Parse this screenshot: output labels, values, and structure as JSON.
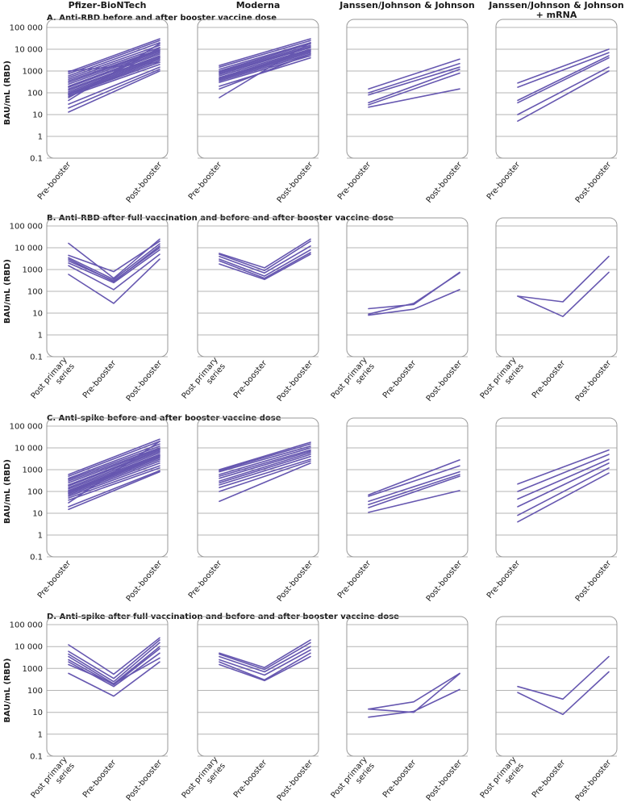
{
  "columns": [
    {
      "label_lines": [
        "Pfizer-BioNTech"
      ]
    },
    {
      "label_lines": [
        "Moderna"
      ]
    },
    {
      "label_lines": [
        "Janssen/Johnson & Johnson"
      ]
    },
    {
      "label_lines": [
        "Janssen/Johnson & Johnson",
        "+ mRNA"
      ]
    }
  ],
  "y_axis_label": "BAU/mL (RBD)",
  "y_tick_labels": [
    "100 000",
    "10 000",
    "1000",
    "100",
    "10",
    "1",
    "0.1"
  ],
  "colors": {
    "series": "#6657b0",
    "grid": "#b4b4b4",
    "frame": "#9a9a9a"
  },
  "chart_data": [
    {
      "type": "line",
      "row": "A",
      "title": "A. Anti-RBD before and after booster vaccine dose",
      "ylabel": "BAU/mL (RBD)",
      "yscale": "log",
      "ylim": [
        0.1,
        100000
      ],
      "categories": [
        "Pre-booster",
        "Post-booster"
      ],
      "panels": [
        {
          "name": "Pfizer-BioNTech",
          "series": [
            [
              900,
              30000
            ],
            [
              750,
              25000
            ],
            [
              600,
              20000
            ],
            [
              500,
              15000
            ],
            [
              420,
              12000
            ],
            [
              350,
              10000
            ],
            [
              300,
              9000
            ],
            [
              250,
              8000
            ],
            [
              200,
              7000
            ],
            [
              180,
              6000
            ],
            [
              150,
              5000
            ],
            [
              130,
              4500
            ],
            [
              110,
              4000
            ],
            [
              95,
              3500
            ],
            [
              85,
              3000
            ],
            [
              80,
              2500
            ],
            [
              70,
              2000
            ],
            [
              60,
              12000
            ],
            [
              45,
              18000
            ],
            [
              30,
              1500
            ],
            [
              20,
              1200
            ],
            [
              13,
              1000
            ],
            [
              1000,
              2500
            ]
          ]
        },
        {
          "name": "Moderna",
          "series": [
            [
              1800,
              30000
            ],
            [
              1500,
              25000
            ],
            [
              1200,
              20000
            ],
            [
              1000,
              18000
            ],
            [
              900,
              15000
            ],
            [
              800,
              13000
            ],
            [
              700,
              12000
            ],
            [
              600,
              10000
            ],
            [
              500,
              9000
            ],
            [
              450,
              8000
            ],
            [
              400,
              7000
            ],
            [
              350,
              6000
            ],
            [
              300,
              5000
            ],
            [
              200,
              4000
            ],
            [
              150,
              6000
            ],
            [
              60,
              20000
            ]
          ]
        },
        {
          "name": "Janssen/Johnson & Johnson",
          "series": [
            [
              150,
              3500
            ],
            [
              100,
              2200
            ],
            [
              80,
              1500
            ],
            [
              35,
              1200
            ],
            [
              28,
              800
            ],
            [
              22,
              150
            ]
          ]
        },
        {
          "name": "Janssen/Johnson & Johnson + mRNA",
          "series": [
            [
              280,
              10000
            ],
            [
              180,
              7000
            ],
            [
              45,
              5000
            ],
            [
              35,
              4000
            ],
            [
              10,
              1500
            ],
            [
              5,
              1000
            ]
          ]
        }
      ]
    },
    {
      "type": "line",
      "row": "B",
      "title": "B. Anti-RBD after full vaccination and before and after booster vaccine dose",
      "ylabel": "BAU/mL (RBD)",
      "yscale": "log",
      "ylim": [
        0.1,
        100000
      ],
      "categories": [
        "Post primary series",
        "Pre-booster",
        "Post-booster"
      ],
      "panels": [
        {
          "name": "Pfizer-BioNTech",
          "series": [
            [
              16000,
              400,
              25000
            ],
            [
              4500,
              800,
              20000
            ],
            [
              3500,
              350,
              15000
            ],
            [
              3000,
              280,
              12000
            ],
            [
              2500,
              300,
              10000
            ],
            [
              2000,
              250,
              8000
            ],
            [
              1500,
              120,
              5000
            ],
            [
              600,
              28,
              3000
            ]
          ]
        },
        {
          "name": "Moderna",
          "series": [
            [
              5500,
              1200,
              25000
            ],
            [
              5000,
              900,
              20000
            ],
            [
              4000,
              700,
              12000
            ],
            [
              3000,
              500,
              8000
            ],
            [
              2500,
              400,
              6000
            ],
            [
              1800,
              350,
              5000
            ]
          ]
        },
        {
          "name": "Janssen/Johnson & Johnson",
          "series": [
            [
              16,
              25,
              750
            ],
            [
              9,
              28,
              700
            ],
            [
              8,
              15,
              120
            ]
          ]
        },
        {
          "name": "Janssen/Johnson & Johnson + mRNA",
          "series": [
            [
              60,
              33,
              4000
            ],
            [
              60,
              7,
              750
            ]
          ]
        }
      ]
    },
    {
      "type": "line",
      "row": "C",
      "title": "C. Anti-spike before and after booster vaccine dose",
      "ylabel": "BAU/mL (RBD)",
      "yscale": "log",
      "ylim": [
        0.1,
        100000
      ],
      "categories": [
        "Pre-booster",
        "Post-booster"
      ],
      "panels": [
        {
          "name": "Pfizer-BioNTech",
          "series": [
            [
              600,
              25000
            ],
            [
              500,
              20000
            ],
            [
              400,
              15000
            ],
            [
              350,
              12000
            ],
            [
              300,
              10000
            ],
            [
              250,
              9000
            ],
            [
              200,
              8000
            ],
            [
              180,
              7000
            ],
            [
              150,
              6000
            ],
            [
              130,
              5000
            ],
            [
              110,
              4500
            ],
            [
              100,
              4000
            ],
            [
              90,
              3500
            ],
            [
              80,
              3000
            ],
            [
              70,
              2500
            ],
            [
              60,
              2000
            ],
            [
              50,
              1500
            ],
            [
              40,
              1200
            ],
            [
              30,
              20000
            ],
            [
              20,
              900
            ],
            [
              15,
              800
            ]
          ]
        },
        {
          "name": "Moderna",
          "series": [
            [
              1000,
              18000
            ],
            [
              900,
              15000
            ],
            [
              800,
              12000
            ],
            [
              600,
              10000
            ],
            [
              500,
              8000
            ],
            [
              400,
              7000
            ],
            [
              300,
              6000
            ],
            [
              250,
              5000
            ],
            [
              200,
              4000
            ],
            [
              150,
              3000
            ],
            [
              100,
              2500
            ],
            [
              35,
              2000
            ]
          ]
        },
        {
          "name": "Janssen/Johnson & Johnson",
          "series": [
            [
              70,
              2800
            ],
            [
              60,
              1500
            ],
            [
              35,
              800
            ],
            [
              25,
              600
            ],
            [
              18,
              500
            ],
            [
              11,
              110
            ]
          ]
        },
        {
          "name": "Janssen/Johnson & Johnson + mRNA",
          "series": [
            [
              220,
              8000
            ],
            [
              100,
              5000
            ],
            [
              45,
              3000
            ],
            [
              20,
              2000
            ],
            [
              8,
              1200
            ],
            [
              4,
              700
            ]
          ]
        }
      ]
    },
    {
      "type": "line",
      "row": "D",
      "title": "D. Anti-spike after full vaccination and before and after booster vaccine dose",
      "ylabel": "BAU/mL (RBD)",
      "yscale": "log",
      "ylim": [
        0.1,
        100000
      ],
      "categories": [
        "Post primary series",
        "Pre-booster",
        "Post-booster"
      ],
      "panels": [
        {
          "name": "Pfizer-BioNTech",
          "series": [
            [
              12000,
              550,
              25000
            ],
            [
              6000,
              350,
              20000
            ],
            [
              4500,
              250,
              15000
            ],
            [
              3500,
              200,
              10000
            ],
            [
              2500,
              180,
              8000
            ],
            [
              2000,
              150,
              5000
            ],
            [
              1500,
              200,
              3000
            ],
            [
              600,
              55,
              2000
            ]
          ]
        },
        {
          "name": "Moderna",
          "series": [
            [
              5000,
              1100,
              20000
            ],
            [
              4500,
              900,
              15000
            ],
            [
              3500,
              700,
              10000
            ],
            [
              2500,
              500,
              7000
            ],
            [
              2000,
              300,
              5000
            ],
            [
              1500,
              280,
              3500
            ]
          ]
        },
        {
          "name": "Janssen/Johnson & Johnson",
          "series": [
            [
              14,
              30,
              600
            ],
            [
              14,
              10,
              580
            ],
            [
              6,
              11,
              110
            ]
          ]
        },
        {
          "name": "Janssen/Johnson & Johnson + mRNA",
          "series": [
            [
              150,
              40,
              3500
            ],
            [
              80,
              8,
              700
            ]
          ]
        }
      ]
    }
  ]
}
